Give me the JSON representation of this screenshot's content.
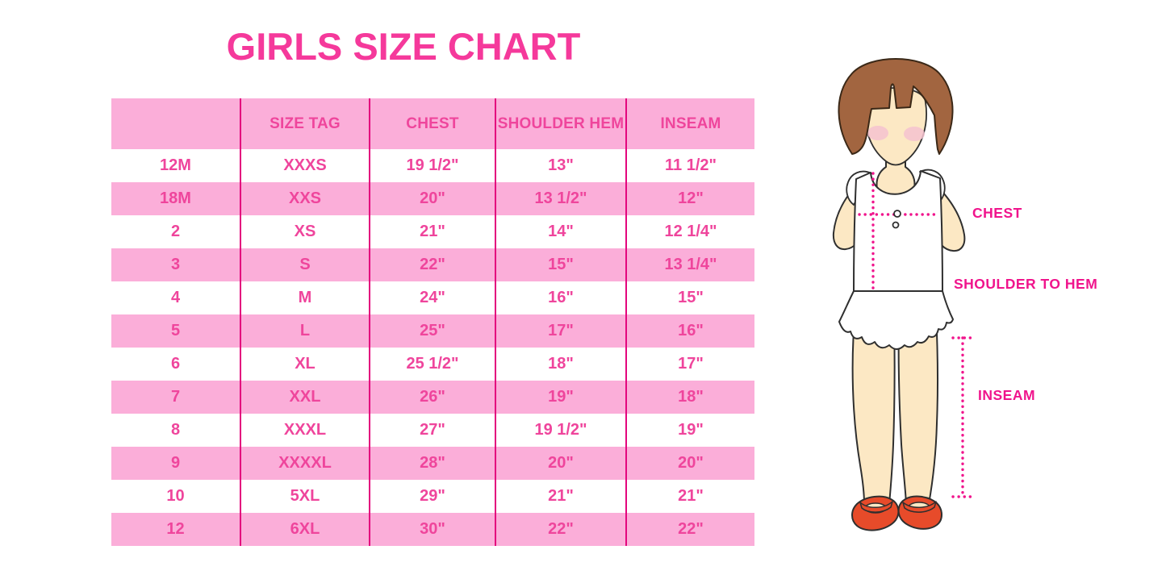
{
  "title": "GIRLS SIZE CHART",
  "chart_data": {
    "type": "table",
    "title": "GIRLS SIZE CHART",
    "columns": [
      "",
      "SIZE TAG",
      "CHEST",
      "SHOULDER HEM",
      "INSEAM"
    ],
    "rows": [
      [
        "12M",
        "XXXS",
        "19 1/2\"",
        "13\"",
        "11 1/2\""
      ],
      [
        "18M",
        "XXS",
        "20\"",
        "13 1/2\"",
        "12\""
      ],
      [
        "2",
        "XS",
        "21\"",
        "14\"",
        "12 1/4\""
      ],
      [
        "3",
        "S",
        "22\"",
        "15\"",
        "13 1/4\""
      ],
      [
        "4",
        "M",
        "24\"",
        "16\"",
        "15\""
      ],
      [
        "5",
        "L",
        "25\"",
        "17\"",
        "16\""
      ],
      [
        "6",
        "XL",
        "25 1/2\"",
        "18\"",
        "17\""
      ],
      [
        "7",
        "XXL",
        "26\"",
        "19\"",
        "18\""
      ],
      [
        "8",
        "XXXL",
        "27\"",
        "19 1/2\"",
        "19\""
      ],
      [
        "9",
        "XXXXL",
        "28\"",
        "20\"",
        "20\""
      ],
      [
        "10",
        "5XL",
        "29\"",
        "21\"",
        "21\""
      ],
      [
        "12",
        "6XL",
        "30\"",
        "22\"",
        "22\""
      ]
    ]
  },
  "figure": {
    "labels": {
      "chest": "CHEST",
      "shoulder_to_hem": "SHOULDER TO HEM",
      "inseam": "INSEAM"
    }
  },
  "colors": {
    "title_pink": "#F5399B",
    "row_pink": "#FBAED9",
    "divider_magenta": "#E3067D",
    "table_text_pink": "#EF459C",
    "measure_magenta": "#F0148C",
    "hair_brown": "#A26540",
    "skin_tone": "#FCE8C4",
    "shoe_red": "#E74B2A"
  }
}
